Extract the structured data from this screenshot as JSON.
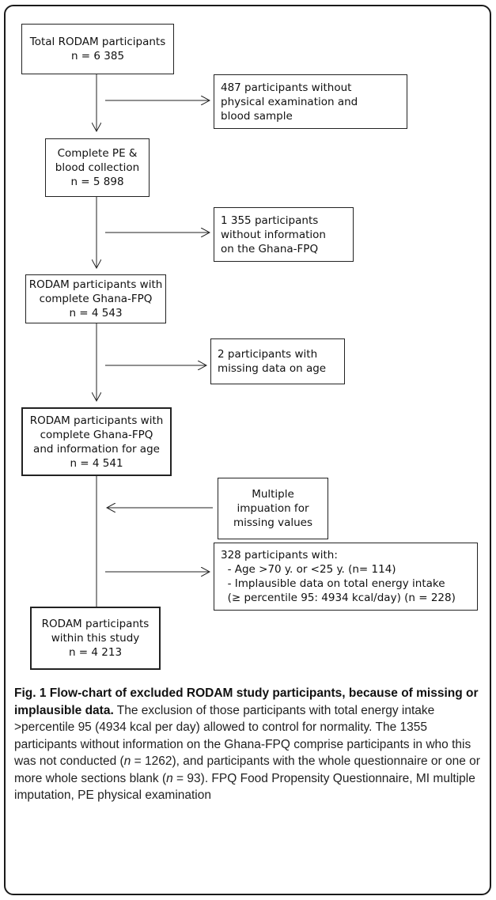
{
  "nodes": {
    "total": [
      "Total RODAM participants",
      "n = 6 385"
    ],
    "excl_pe": [
      "487 participants without",
      "physical examination and",
      "blood sample"
    ],
    "complete_pe": [
      "Complete PE &",
      "blood collection",
      "n = 5 898"
    ],
    "excl_fpq": [
      "1 355 participants",
      "without information",
      "on the Ghana-FPQ"
    ],
    "complete_fpq": [
      "RODAM participants with",
      "complete Ghana-FPQ",
      "n = 4 543"
    ],
    "excl_age": [
      "2 participants with",
      "missing data on age"
    ],
    "complete_age": [
      "RODAM participants with",
      "complete Ghana-FPQ",
      "and information for age",
      "n = 4 541"
    ],
    "imputation": [
      "Multiple",
      "impuation for",
      "missing values"
    ],
    "excl_328": [
      "328 participants with:",
      "  - Age >70 y. or <25 y. (n= 114)",
      "  - Implausible data on total energy intake",
      "  (≥ percentile 95: 4934 kcal/day) (n = 228)"
    ],
    "final": [
      "RODAM participants",
      "within this study",
      "n = 4 213"
    ]
  },
  "caption": {
    "title": "Fig. 1 Flow-chart of excluded RODAM study participants, because of missing or implausible data.",
    "s1": " The exclusion of those participants with total energy intake >percentile 95 (4934 kcal per day) allowed to control for normality. The 1355 participants without information on the Ghana-FPQ comprise participants in who this was not conducted (",
    "n1_var": "n",
    "n1_val": " = 1262), and participants with the whole questionnaire or one or more whole sections blank (",
    "n2_var": "n",
    "n2_val": " = 93). FPQ Food Propensity Questionnaire, MI multiple imputation, PE physical examination"
  }
}
